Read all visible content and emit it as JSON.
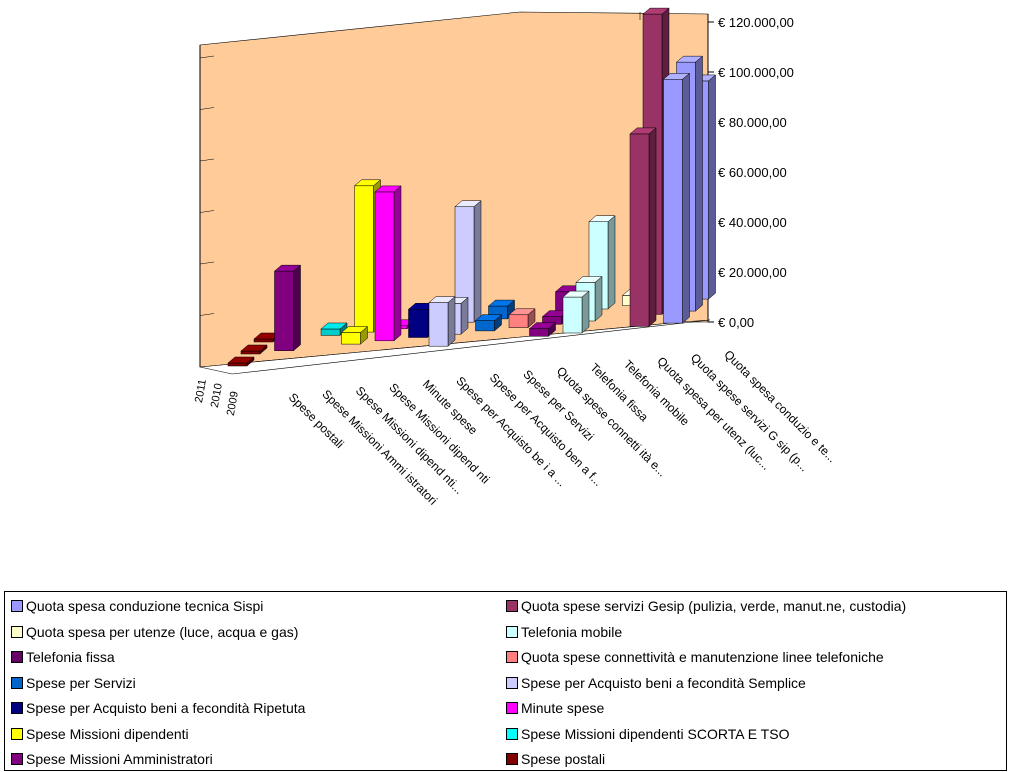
{
  "chart_data": {
    "type": "bar",
    "subtype": "3d-grouped-column",
    "y_axis": {
      "min": 0,
      "max": 120000,
      "ticks": [
        "€ 0,00",
        "€ 20.000,00",
        "€ 40.000,00",
        "€ 60.000,00",
        "€ 80.000,00",
        "€ 100.000,00",
        "€ 120.000,00"
      ]
    },
    "years": [
      "2011",
      "2010",
      "2009"
    ],
    "categories": [
      {
        "name": "Spese postali",
        "color": "#800000",
        "values": [
          300,
          300,
          300
        ]
      },
      {
        "name": "Spese Missioni Ammi istratori",
        "color": "#800080",
        "values": [
          0,
          31000,
          0
        ]
      },
      {
        "name": "Spese Missioni dipend nti...",
        "color": "#00CCCC",
        "values": [
          0,
          0,
          2500
        ]
      },
      {
        "name": "Spese Missioni dipend nti",
        "color": "#FFFF00",
        "values": [
          0,
          4500,
          57000
        ]
      },
      {
        "name": "Minute spese",
        "color": "#FF00FF",
        "values": [
          0,
          58000,
          300
        ]
      },
      {
        "name": "Spese per Acquisto be i a ...",
        "color": "#000080",
        "values": [
          0,
          11000,
          500
        ]
      },
      {
        "name": "Spese per Acquisto ben a f...",
        "color": "#CCCCFF",
        "values": [
          17000,
          12000,
          45000
        ]
      },
      {
        "name": "Spese per Servizi",
        "color": "#0066CC",
        "values": [
          0,
          4000,
          5000
        ]
      },
      {
        "name": "Quota spese connetti ità e...",
        "color": "#FF8080",
        "values": [
          0,
          5000,
          0
        ]
      },
      {
        "name": "Telefonia fissa",
        "color": "#800080",
        "values": [
          3000,
          3000,
          8000
        ]
      },
      {
        "name": "Telefonia mobile",
        "color": "#CCFFFF",
        "values": [
          14000,
          15000,
          34000
        ]
      },
      {
        "name": "Quota spesa per utenz (luc...",
        "color": "#FFFFCC",
        "values": [
          0,
          0,
          4000
        ]
      },
      {
        "name": "Quota spese servizi G sip (p...",
        "color": "#993366",
        "values": [
          75000,
          117000,
          0
        ]
      },
      {
        "name": "Quota spesa conduzio e te...",
        "color": "#9999FF",
        "values": [
          95000,
          97000,
          85000
        ]
      }
    ]
  },
  "legend": [
    {
      "label": "Quota spesa conduzione tecnica Sispi",
      "color": "#9999FF"
    },
    {
      "label": "Quota spese servizi Gesip (pulizia, verde, manut.ne, custodia)",
      "color": "#993366"
    },
    {
      "label": "Quota spesa per utenze (luce, acqua e gas)",
      "color": "#FFFFCC"
    },
    {
      "label": "Telefonia mobile",
      "color": "#CCFFFF"
    },
    {
      "label": "Telefonia fissa",
      "color": "#660066"
    },
    {
      "label": "Quota spese connettività e manutenzione linee telefoniche",
      "color": "#FF8080"
    },
    {
      "label": "Spese per Servizi",
      "color": "#0066CC"
    },
    {
      "label": "Spese per Acquisto beni a fecondità Semplice",
      "color": "#CCCCFF"
    },
    {
      "label": "Spese per Acquisto beni a fecondità Ripetuta",
      "color": "#000080"
    },
    {
      "label": "Minute spese",
      "color": "#FF00FF"
    },
    {
      "label": "Spese Missioni dipendenti",
      "color": "#FFFF00"
    },
    {
      "label": "Spese Missioni dipendenti SCORTA E TSO",
      "color": "#00FFFF"
    },
    {
      "label": "Spese Missioni Amministratori",
      "color": "#800080"
    },
    {
      "label": "Spese postali",
      "color": "#800000"
    }
  ]
}
